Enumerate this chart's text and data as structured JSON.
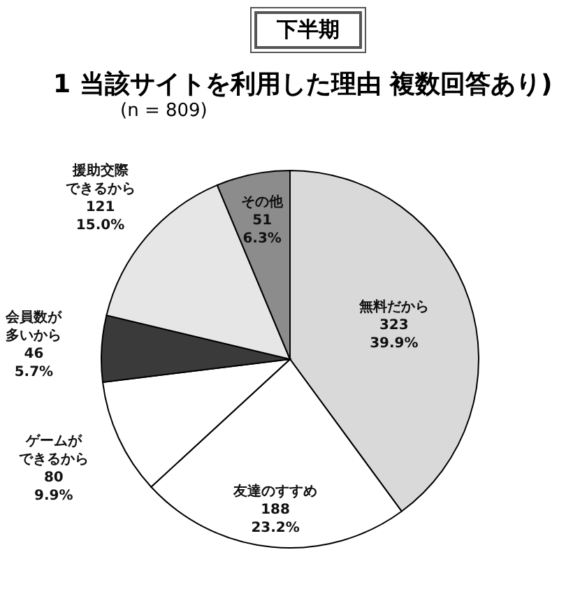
{
  "chart_data": {
    "type": "pie",
    "title": "下半期",
    "subtitle": "1 当該サイトを利用した理由 複数回答あり)",
    "annotations": [
      "(n = 809)"
    ],
    "categories": [
      "無料だから",
      "友達のすすめ",
      "ゲームができるから",
      "会員数が多いから",
      "援助交際できるから",
      "その他"
    ],
    "values": [
      323,
      188,
      80,
      46,
      121,
      51
    ],
    "value_labels": [
      "323\n39.9%",
      "188\n23.2%",
      "80\n9.9%",
      "46\n5.7%",
      "121\n15.0%",
      "51\n6.3%"
    ],
    "colors": [
      "#d9d9d9",
      "#ffffff",
      "#ffffff",
      "#3a3a3a",
      "#e6e6e6",
      "#8c8c8c"
    ]
  }
}
